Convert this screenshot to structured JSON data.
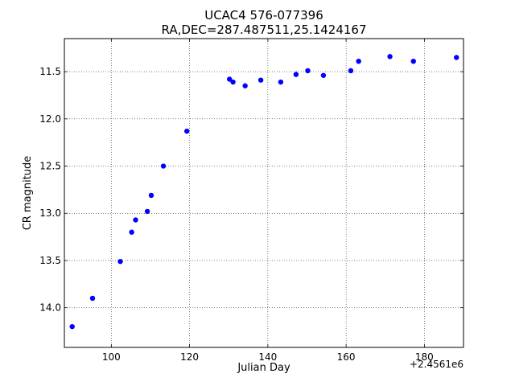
{
  "chart_data": {
    "type": "scatter",
    "title": "UCAC4 576-077396",
    "subtitle": "RA,DEC=287.487511,25.1424167",
    "xlabel": "Julian Day",
    "ylabel": "CR magnitude",
    "x_offset_label": "+2.4561e6",
    "xlim": [
      88,
      190
    ],
    "ylim": [
      14.42,
      11.15
    ],
    "y_inverted": true,
    "x_ticks": [
      100,
      120,
      140,
      160,
      180
    ],
    "x_tick_labels": [
      "100",
      "120",
      "140",
      "160",
      "180"
    ],
    "y_ticks": [
      11.5,
      12.0,
      12.5,
      13.0,
      13.5,
      14.0
    ],
    "y_tick_labels": [
      "11.5",
      "12.0",
      "12.5",
      "13.0",
      "13.5",
      "14.0"
    ],
    "grid": true,
    "color": "#0000ff",
    "series": [
      {
        "x": [
          90.0,
          95.2,
          102.3,
          105.2,
          106.2,
          109.2,
          110.2,
          113.3,
          119.3,
          130.2,
          131.1,
          134.2,
          138.2,
          143.3,
          147.2,
          150.2,
          154.2,
          161.2,
          163.2,
          171.2,
          177.2,
          188.2
        ],
        "y": [
          14.2,
          13.9,
          13.51,
          13.2,
          13.07,
          12.98,
          12.81,
          12.5,
          12.13,
          11.58,
          11.61,
          11.65,
          11.59,
          11.61,
          11.53,
          11.49,
          11.54,
          11.49,
          11.39,
          11.34,
          11.39,
          11.35
        ]
      }
    ]
  }
}
